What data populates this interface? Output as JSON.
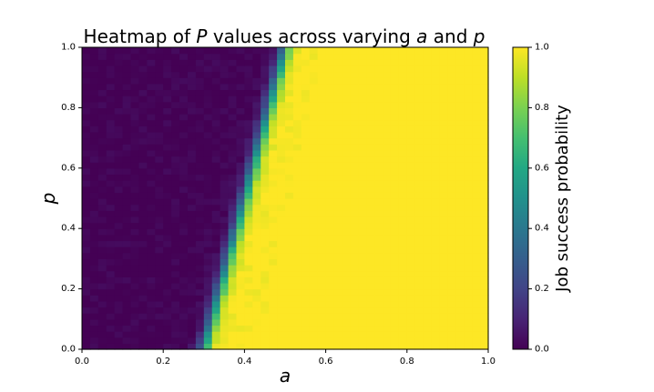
{
  "chart_data": {
    "type": "heatmap",
    "title_parts": [
      {
        "text": "Heatmap of ",
        "italic": false
      },
      {
        "text": "P",
        "italic": true
      },
      {
        "text": " values across varying ",
        "italic": false
      },
      {
        "text": "a",
        "italic": true
      },
      {
        "text": " and ",
        "italic": false
      },
      {
        "text": "p",
        "italic": true
      }
    ],
    "xlabel": "a",
    "ylabel": "p",
    "xlim": [
      0.0,
      1.0
    ],
    "ylim": [
      0.0,
      1.0
    ],
    "xticks": [
      {
        "value": 0.0,
        "label": "0.0"
      },
      {
        "value": 0.2,
        "label": "0.2"
      },
      {
        "value": 0.4,
        "label": "0.4"
      },
      {
        "value": 0.6,
        "label": "0.6"
      },
      {
        "value": 0.8,
        "label": "0.8"
      },
      {
        "value": 1.0,
        "label": "1.0"
      }
    ],
    "yticks": [
      {
        "value": 0.0,
        "label": "0.0"
      },
      {
        "value": 0.2,
        "label": "0.2"
      },
      {
        "value": 0.4,
        "label": "0.4"
      },
      {
        "value": 0.6,
        "label": "0.6"
      },
      {
        "value": 0.8,
        "label": "0.8"
      },
      {
        "value": 1.0,
        "label": "1.0"
      }
    ],
    "colorbar": {
      "label": "Job success probability",
      "range": [
        0.0,
        1.0
      ],
      "ticks": [
        {
          "value": 0.0,
          "label": "0.0"
        },
        {
          "value": 0.2,
          "label": "0.2"
        },
        {
          "value": 0.4,
          "label": "0.4"
        },
        {
          "value": 0.6,
          "label": "0.6"
        },
        {
          "value": 0.8,
          "label": "0.8"
        },
        {
          "value": 1.0,
          "label": "1.0"
        }
      ],
      "colormap": "viridis"
    },
    "grid": false,
    "transition": {
      "a_half_at_p0": 0.3,
      "a_half_at_p1": 0.5,
      "a_one_at_p0": 0.43,
      "a_one_at_p1": 0.59
    }
  }
}
